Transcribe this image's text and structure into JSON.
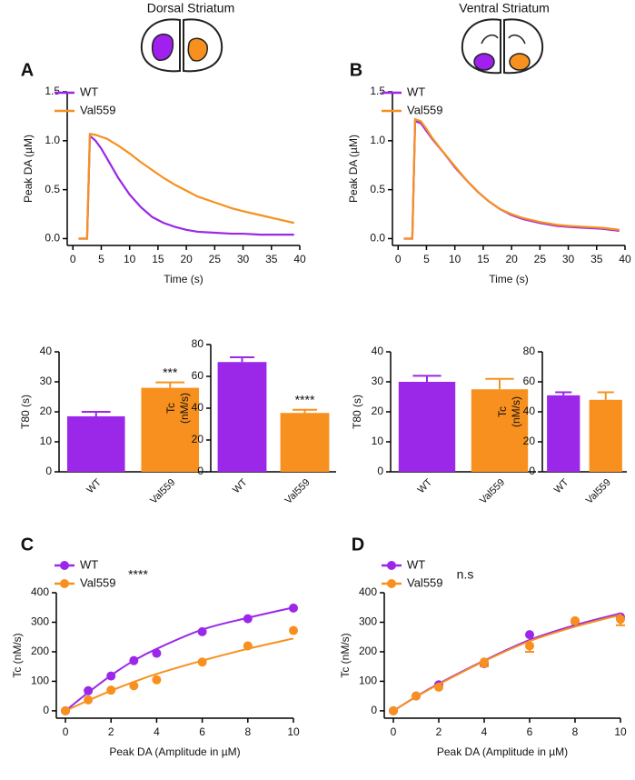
{
  "chart_data": [
    {
      "type": "line",
      "panel": "A",
      "title": "Dorsal Striatum",
      "xlabel": "Time (s)",
      "ylabel": "Peak DA (µM)",
      "x": [
        1,
        2,
        2.5,
        3,
        4,
        5,
        6,
        8,
        10,
        12,
        14,
        16,
        18,
        20,
        22,
        25,
        28,
        30,
        33,
        36,
        39
      ],
      "series": [
        {
          "name": "WT",
          "color": "#9b27e8",
          "values": [
            0,
            0,
            0,
            1.05,
            1.0,
            0.92,
            0.82,
            0.62,
            0.45,
            0.32,
            0.22,
            0.16,
            0.12,
            0.09,
            0.07,
            0.06,
            0.05,
            0.05,
            0.04,
            0.04,
            0.04
          ]
        },
        {
          "name": "Val559",
          "color": "#f7901e",
          "values": [
            0,
            0,
            0,
            1.07,
            1.06,
            1.04,
            1.02,
            0.95,
            0.87,
            0.78,
            0.7,
            0.62,
            0.55,
            0.49,
            0.43,
            0.37,
            0.31,
            0.28,
            0.24,
            0.2,
            0.16
          ]
        }
      ],
      "xlim": [
        -1,
        40
      ],
      "xticks": [
        0,
        5,
        10,
        15,
        20,
        25,
        30,
        35,
        40
      ],
      "ylim": [
        -0.07,
        1.5
      ],
      "yticks": [
        {
          "value": 0,
          "label": "0.0"
        },
        {
          "value": 0.5,
          "label": "0.5"
        },
        {
          "value": 1,
          "label": "1.0"
        },
        {
          "value": 1.5,
          "label": "1.5"
        }
      ]
    },
    {
      "type": "line",
      "panel": "B",
      "title": "Ventral Striatum",
      "xlabel": "Time (s)",
      "ylabel": "Peak DA (µM)",
      "x": [
        1,
        2,
        2.5,
        3,
        4,
        5,
        6,
        8,
        10,
        12,
        14,
        16,
        18,
        20,
        22,
        25,
        28,
        30,
        33,
        36,
        39
      ],
      "series": [
        {
          "name": "WT",
          "color": "#9b27e8",
          "values": [
            0,
            0,
            0,
            1.2,
            1.18,
            1.1,
            1.02,
            0.88,
            0.73,
            0.6,
            0.48,
            0.38,
            0.3,
            0.24,
            0.2,
            0.16,
            0.13,
            0.12,
            0.11,
            0.1,
            0.08
          ]
        },
        {
          "name": "Val559",
          "color": "#f7901e",
          "values": [
            0,
            0,
            0,
            1.22,
            1.2,
            1.12,
            1.03,
            0.88,
            0.74,
            0.6,
            0.48,
            0.38,
            0.3,
            0.25,
            0.21,
            0.17,
            0.14,
            0.13,
            0.12,
            0.11,
            0.09
          ]
        }
      ],
      "xlim": [
        -1,
        40
      ],
      "xticks": [
        0,
        5,
        10,
        15,
        20,
        25,
        30,
        35,
        40
      ],
      "ylim": [
        -0.07,
        1.5
      ],
      "yticks": [
        {
          "value": 0,
          "label": "0.0"
        },
        {
          "value": 0.5,
          "label": "0.5"
        },
        {
          "value": 1,
          "label": "1.0"
        },
        {
          "value": 1.5,
          "label": "1.5"
        }
      ]
    },
    {
      "type": "bar",
      "ylabel": [
        "T80 (s)"
      ],
      "categories": [
        "WT",
        "Val559"
      ],
      "colors": [
        "#9b27e8",
        "#f7901e"
      ],
      "values": [
        18.5,
        28
      ],
      "errors": [
        1.5,
        1.8
      ],
      "annotations": [
        null,
        "***"
      ],
      "ylim": [
        0,
        40
      ],
      "yticks": [
        0,
        10,
        20,
        30,
        40
      ]
    },
    {
      "type": "bar",
      "ylabel": [
        "Tc",
        "(nM/s)"
      ],
      "categories": [
        "WT",
        "Val559"
      ],
      "colors": [
        "#9b27e8",
        "#f7901e"
      ],
      "values": [
        69,
        37
      ],
      "errors": [
        3,
        2
      ],
      "annotations": [
        null,
        "****"
      ],
      "ylim": [
        0,
        80
      ],
      "yticks": [
        0,
        20,
        40,
        60,
        80
      ]
    },
    {
      "type": "bar",
      "ylabel": [
        "T80 (s)"
      ],
      "categories": [
        "WT",
        "Val559"
      ],
      "colors": [
        "#9b27e8",
        "#f7901e"
      ],
      "values": [
        30,
        27.5
      ],
      "errors": [
        2,
        3.5
      ],
      "ylim": [
        0,
        40
      ],
      "yticks": [
        0,
        10,
        20,
        30,
        40
      ]
    },
    {
      "type": "bar",
      "ylabel": [
        "Tc",
        "(nM/s)"
      ],
      "categories": [
        "WT",
        "Val559"
      ],
      "colors": [
        "#9b27e8",
        "#f7901e"
      ],
      "values": [
        51,
        48
      ],
      "errors": [
        2,
        5
      ],
      "ylim": [
        0,
        80
      ],
      "yticks": [
        0,
        20,
        40,
        60,
        80
      ]
    },
    {
      "type": "scatter",
      "panel": "C",
      "annotation": "****",
      "xlabel": "Peak DA (Amplitude in µM)",
      "ylabel": "Tc (nM/s)",
      "x": [
        0,
        1,
        2,
        3,
        4,
        6,
        8,
        10
      ],
      "series": [
        {
          "name": "WT",
          "color": "#9b27e8",
          "values": [
            0,
            68,
            118,
            170,
            195,
            268,
            312,
            348
          ],
          "fit_values": [
            0,
            62,
            120,
            170,
            210,
            275,
            315,
            350
          ]
        },
        {
          "name": "Val559",
          "color": "#f7901e",
          "values": [
            0,
            37,
            70,
            85,
            105,
            165,
            220,
            272
          ],
          "fit_values": [
            0,
            35,
            68,
            98,
            125,
            170,
            210,
            245
          ]
        }
      ],
      "xlim": [
        -0.4,
        10
      ],
      "xticks": [
        0,
        2,
        4,
        6,
        8,
        10
      ],
      "ylim": [
        -25,
        400
      ],
      "yticks": [
        0,
        100,
        200,
        300,
        400
      ]
    },
    {
      "type": "scatter",
      "panel": "D",
      "annotation": "n.s",
      "xlabel": "Peak DA (Amplitude in µM)",
      "ylabel": "Tc (nM/s)",
      "x": [
        0,
        1,
        2,
        4,
        6,
        8,
        10
      ],
      "series": [
        {
          "name": "WT",
          "color": "#9b27e8",
          "values": [
            0,
            50,
            88,
            160,
            258,
            303,
            318
          ],
          "fit_values": [
            0,
            48,
            92,
            170,
            240,
            290,
            330
          ]
        },
        {
          "name": "Val559",
          "color": "#f7901e",
          "values": [
            0,
            50,
            80,
            165,
            220,
            305,
            310
          ],
          "errors": [
            null,
            null,
            null,
            15,
            20,
            null,
            20
          ],
          "fit_values": [
            0,
            47,
            90,
            168,
            236,
            285,
            325
          ]
        }
      ],
      "xlim": [
        -0.4,
        10
      ],
      "xticks": [
        0,
        2,
        4,
        6,
        8,
        10
      ],
      "ylim": [
        -25,
        400
      ],
      "yticks": [
        0,
        100,
        200,
        300,
        400
      ]
    }
  ]
}
